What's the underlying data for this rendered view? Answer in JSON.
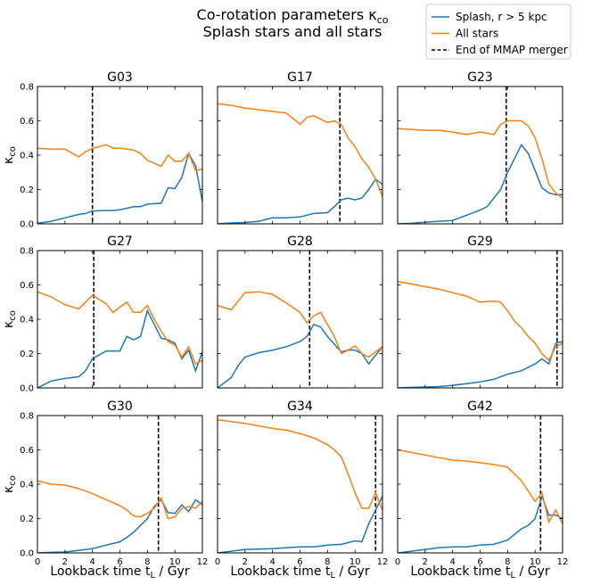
{
  "figure": {
    "title_line1": "Co-rotation parameters κ",
    "title_sub": "co",
    "title_line2": "Splash stars and all stars",
    "xlabel": "Lookback time t",
    "xlabel_sub": "L",
    "xlabel_unit": " / Gyr",
    "ylabel": "κ",
    "ylabel_sub": "co",
    "legend": [
      {
        "label_a": "Splash, ",
        "label_b": "r > 5 kpc",
        "color": "#1f77b4",
        "style": "solid"
      },
      {
        "label_a": "All stars",
        "label_b": "",
        "color": "#ff7f0e",
        "style": "solid"
      },
      {
        "label_a": "End of MMAP merger",
        "label_b": "",
        "color": "#000000",
        "style": "dashed"
      }
    ],
    "xticks": [
      "0",
      "2",
      "4",
      "6",
      "8",
      "10",
      "12"
    ],
    "yticks": [
      "0.0",
      "0.2",
      "0.4",
      "0.6",
      "0.8"
    ]
  },
  "chart_data": [
    {
      "type": "line",
      "title": "G03",
      "xlim": [
        0,
        12
      ],
      "ylim": [
        0,
        0.8
      ],
      "vline": 4.0,
      "series": [
        {
          "name": "Splash, r > 5 kpc",
          "color": "#1f77b4",
          "x": [
            0,
            1,
            2,
            3,
            3.5,
            4,
            5,
            5.5,
            6,
            7,
            7.5,
            8,
            9,
            9.5,
            10,
            10.5,
            11,
            11.5,
            12
          ],
          "y": [
            0.003,
            0.015,
            0.035,
            0.055,
            0.06,
            0.075,
            0.078,
            0.078,
            0.082,
            0.1,
            0.1,
            0.115,
            0.12,
            0.21,
            0.205,
            0.27,
            0.41,
            0.34,
            0.13
          ]
        },
        {
          "name": "All stars",
          "color": "#ff7f0e",
          "x": [
            0,
            1,
            2,
            3,
            3.5,
            4,
            5,
            5.5,
            6,
            7,
            7.5,
            8,
            9,
            9.5,
            10,
            10.5,
            11,
            11.5,
            12
          ],
          "y": [
            0.44,
            0.435,
            0.435,
            0.39,
            0.42,
            0.44,
            0.46,
            0.44,
            0.44,
            0.43,
            0.41,
            0.37,
            0.335,
            0.4,
            0.365,
            0.365,
            0.41,
            0.31,
            0.32
          ]
        }
      ]
    },
    {
      "type": "line",
      "title": "G17",
      "xlim": [
        0,
        12
      ],
      "ylim": [
        0,
        0.8
      ],
      "vline": 8.9,
      "series": [
        {
          "name": "Splash, r > 5 kpc",
          "color": "#1f77b4",
          "x": [
            0,
            1,
            2,
            3,
            4,
            5,
            6,
            7,
            8,
            8.5,
            9,
            9.5,
            10,
            10.5,
            11,
            11.5,
            12
          ],
          "y": [
            0.0,
            0.005,
            0.008,
            0.015,
            0.035,
            0.035,
            0.04,
            0.06,
            0.065,
            0.1,
            0.14,
            0.15,
            0.14,
            0.15,
            0.2,
            0.26,
            0.23
          ]
        },
        {
          "name": "All stars",
          "color": "#ff7f0e",
          "x": [
            0,
            1,
            2,
            3,
            4,
            5,
            6,
            6.5,
            7,
            8,
            8.5,
            9,
            9.5,
            10,
            10.5,
            11,
            11.5,
            12
          ],
          "y": [
            0.7,
            0.69,
            0.675,
            0.665,
            0.655,
            0.645,
            0.58,
            0.62,
            0.63,
            0.59,
            0.6,
            0.58,
            0.5,
            0.45,
            0.38,
            0.33,
            0.26,
            0.16
          ]
        }
      ]
    },
    {
      "type": "line",
      "title": "G23",
      "xlim": [
        0,
        12
      ],
      "ylim": [
        0,
        0.8
      ],
      "vline": 7.9,
      "series": [
        {
          "name": "Splash, r > 5 kpc",
          "color": "#1f77b4",
          "x": [
            0,
            1,
            2,
            3,
            4,
            5,
            6,
            6.5,
            7,
            7.5,
            8,
            8.5,
            9,
            9.5,
            10,
            10.5,
            11,
            11.5,
            12
          ],
          "y": [
            0.0,
            0.003,
            0.01,
            0.015,
            0.02,
            0.05,
            0.08,
            0.1,
            0.15,
            0.2,
            0.3,
            0.38,
            0.46,
            0.41,
            0.31,
            0.21,
            0.18,
            0.17,
            0.17
          ]
        },
        {
          "name": "All stars",
          "color": "#ff7f0e",
          "x": [
            0,
            1,
            2,
            3,
            4,
            5,
            6,
            7,
            7.5,
            8,
            8.5,
            9,
            9.5,
            10,
            10.5,
            11,
            11.5,
            12
          ],
          "y": [
            0.555,
            0.55,
            0.545,
            0.545,
            0.535,
            0.52,
            0.535,
            0.52,
            0.58,
            0.6,
            0.6,
            0.6,
            0.57,
            0.5,
            0.38,
            0.23,
            0.18,
            0.15
          ]
        }
      ]
    },
    {
      "type": "line",
      "title": "G27",
      "xlim": [
        0,
        12
      ],
      "ylim": [
        0,
        0.8
      ],
      "vline": 4.1,
      "series": [
        {
          "name": "Splash, r > 5 kpc",
          "color": "#1f77b4",
          "x": [
            0,
            1,
            2,
            3,
            3.5,
            4,
            5,
            6,
            6.5,
            7,
            7.5,
            8,
            8.5,
            9,
            9.5,
            10,
            10.5,
            11,
            11.5,
            12
          ],
          "y": [
            0.0,
            0.04,
            0.055,
            0.065,
            0.1,
            0.17,
            0.215,
            0.215,
            0.3,
            0.28,
            0.3,
            0.45,
            0.37,
            0.29,
            0.28,
            0.26,
            0.17,
            0.22,
            0.1,
            0.21
          ]
        },
        {
          "name": "All stars",
          "color": "#ff7f0e",
          "x": [
            0,
            1,
            2,
            3,
            3.5,
            4,
            5,
            5.5,
            6,
            6.5,
            7,
            7.5,
            8,
            8.5,
            9,
            9.5,
            10,
            10.5,
            11,
            11.5,
            12
          ],
          "y": [
            0.56,
            0.53,
            0.485,
            0.46,
            0.5,
            0.54,
            0.49,
            0.44,
            0.47,
            0.5,
            0.44,
            0.44,
            0.48,
            0.4,
            0.33,
            0.27,
            0.25,
            0.18,
            0.24,
            0.14,
            0.16
          ]
        }
      ]
    },
    {
      "type": "line",
      "title": "G28",
      "xlim": [
        0,
        12
      ],
      "ylim": [
        0,
        0.8
      ],
      "vline": 6.7,
      "series": [
        {
          "name": "Splash, r > 5 kpc",
          "color": "#1f77b4",
          "x": [
            0,
            1,
            1.5,
            2,
            3,
            4,
            5,
            6,
            6.5,
            7,
            7.5,
            8,
            9,
            9.5,
            10,
            10.5,
            11,
            11.5,
            12
          ],
          "y": [
            0.0,
            0.06,
            0.13,
            0.18,
            0.205,
            0.22,
            0.24,
            0.27,
            0.3,
            0.37,
            0.355,
            0.3,
            0.21,
            0.22,
            0.22,
            0.2,
            0.14,
            0.19,
            0.24
          ]
        },
        {
          "name": "All stars",
          "color": "#ff7f0e",
          "x": [
            0,
            1,
            2,
            3,
            4,
            5,
            6,
            6.5,
            7,
            7.5,
            8,
            8.5,
            9,
            9.5,
            10,
            10.5,
            11,
            11.5,
            12
          ],
          "y": [
            0.48,
            0.455,
            0.555,
            0.56,
            0.545,
            0.495,
            0.44,
            0.38,
            0.42,
            0.44,
            0.37,
            0.3,
            0.2,
            0.22,
            0.245,
            0.2,
            0.18,
            0.21,
            0.24
          ]
        }
      ]
    },
    {
      "type": "line",
      "title": "G29",
      "xlim": [
        0,
        12
      ],
      "ylim": [
        0,
        0.8
      ],
      "vline": 11.6,
      "series": [
        {
          "name": "Splash, r > 5 kpc",
          "color": "#1f77b4",
          "x": [
            0,
            1,
            2,
            3,
            4,
            5,
            6,
            7,
            8,
            9,
            10,
            10.5,
            11,
            11.5,
            12
          ],
          "y": [
            0.0,
            0.003,
            0.005,
            0.008,
            0.015,
            0.025,
            0.035,
            0.05,
            0.08,
            0.1,
            0.14,
            0.17,
            0.14,
            0.26,
            0.27
          ]
        },
        {
          "name": "All stars",
          "color": "#ff7f0e",
          "x": [
            0,
            1,
            2,
            3,
            4,
            5,
            6,
            7,
            7.5,
            8,
            8.5,
            9,
            9.5,
            10,
            10.5,
            11,
            11.5,
            12
          ],
          "y": [
            0.62,
            0.605,
            0.59,
            0.575,
            0.555,
            0.535,
            0.5,
            0.505,
            0.5,
            0.45,
            0.39,
            0.35,
            0.3,
            0.26,
            0.2,
            0.16,
            0.24,
            0.26
          ]
        }
      ]
    },
    {
      "type": "line",
      "title": "G30",
      "xlim": [
        0,
        12
      ],
      "ylim": [
        0,
        0.8
      ],
      "vline": 8.8,
      "series": [
        {
          "name": "Splash, r > 5 kpc",
          "color": "#1f77b4",
          "x": [
            0,
            1,
            2,
            3,
            4,
            5,
            6,
            6.5,
            7,
            7.5,
            8,
            8.5,
            9,
            9.5,
            10,
            10.5,
            11,
            11.5,
            12
          ],
          "y": [
            0.0,
            0.003,
            0.005,
            0.015,
            0.025,
            0.045,
            0.065,
            0.09,
            0.12,
            0.16,
            0.2,
            0.27,
            0.31,
            0.235,
            0.23,
            0.28,
            0.24,
            0.31,
            0.28
          ]
        },
        {
          "name": "All stars",
          "color": "#ff7f0e",
          "x": [
            0,
            1,
            2,
            3,
            4,
            5,
            6,
            6.5,
            7,
            7.5,
            8,
            8.5,
            9,
            9.5,
            10,
            10.5,
            11,
            11.5,
            12
          ],
          "y": [
            0.42,
            0.4,
            0.395,
            0.375,
            0.345,
            0.31,
            0.275,
            0.25,
            0.215,
            0.21,
            0.23,
            0.26,
            0.32,
            0.2,
            0.21,
            0.26,
            0.27,
            0.26,
            0.3
          ]
        }
      ]
    },
    {
      "type": "line",
      "title": "G34",
      "xlim": [
        0,
        12
      ],
      "ylim": [
        0,
        0.8
      ],
      "vline": 11.5,
      "series": [
        {
          "name": "Splash, r > 5 kpc",
          "color": "#1f77b4",
          "x": [
            0,
            1,
            2,
            3,
            4,
            5,
            6,
            7,
            8,
            9,
            10,
            10.5,
            11,
            11.5,
            12
          ],
          "y": [
            0.0,
            0.01,
            0.02,
            0.022,
            0.025,
            0.03,
            0.035,
            0.035,
            0.045,
            0.05,
            0.07,
            0.065,
            0.17,
            0.25,
            0.33
          ]
        },
        {
          "name": "All stars",
          "color": "#ff7f0e",
          "x": [
            0,
            1,
            2,
            3,
            4,
            5,
            6,
            7,
            8,
            8.5,
            9,
            9.5,
            10,
            10.5,
            11,
            11.5,
            12
          ],
          "y": [
            0.775,
            0.765,
            0.755,
            0.74,
            0.725,
            0.715,
            0.695,
            0.67,
            0.63,
            0.6,
            0.56,
            0.46,
            0.35,
            0.26,
            0.26,
            0.35,
            0.25
          ]
        }
      ]
    },
    {
      "type": "line",
      "title": "G42",
      "xlim": [
        0,
        12
      ],
      "ylim": [
        0,
        0.8
      ],
      "vline": 10.4,
      "series": [
        {
          "name": "Splash, r > 5 kpc",
          "color": "#1f77b4",
          "x": [
            0,
            1,
            2,
            3,
            4,
            5,
            6,
            7,
            8,
            9,
            9.5,
            10,
            10.5,
            11,
            11.5,
            12
          ],
          "y": [
            0.0,
            0.01,
            0.02,
            0.03,
            0.035,
            0.035,
            0.045,
            0.05,
            0.075,
            0.14,
            0.16,
            0.2,
            0.33,
            0.22,
            0.22,
            0.2
          ]
        },
        {
          "name": "All stars",
          "color": "#ff7f0e",
          "x": [
            0,
            1,
            2,
            3,
            4,
            5,
            6,
            7,
            8,
            8.5,
            9,
            9.5,
            10,
            10.5,
            11,
            11.5,
            12
          ],
          "y": [
            0.6,
            0.585,
            0.57,
            0.555,
            0.54,
            0.535,
            0.525,
            0.515,
            0.5,
            0.46,
            0.42,
            0.36,
            0.3,
            0.35,
            0.18,
            0.25,
            0.17
          ]
        }
      ]
    }
  ]
}
